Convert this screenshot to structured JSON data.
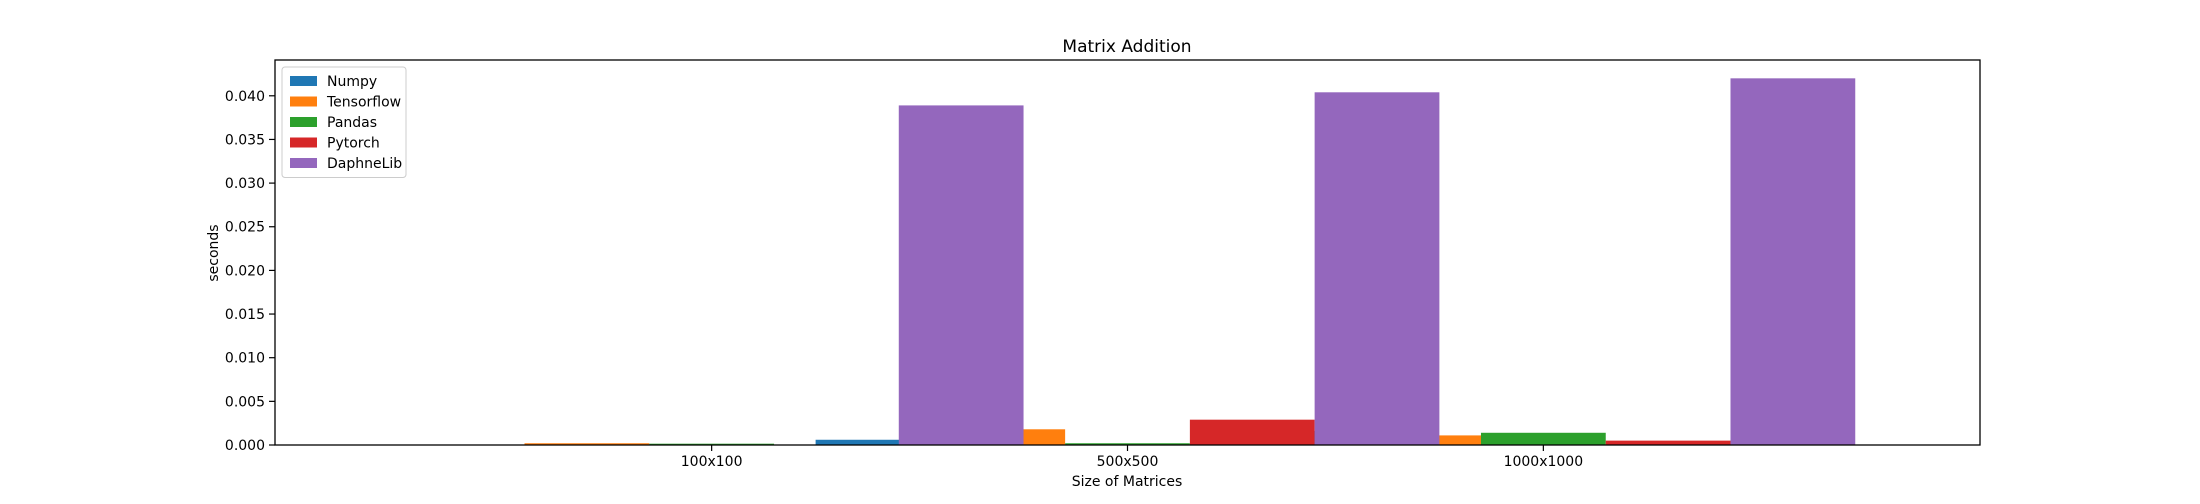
{
  "chart_data": {
    "type": "bar",
    "title": "Matrix Addition",
    "xlabel": "Size of Matrices",
    "ylabel": "seconds",
    "categories": [
      "100x100",
      "500x500",
      "1000x1000"
    ],
    "series": [
      {
        "name": "Numpy",
        "color": "#1f77b4",
        "values": [
          1e-05,
          0.0006,
          0.0016
        ]
      },
      {
        "name": "Tensorflow",
        "color": "#ff7f0e",
        "values": [
          0.0002,
          0.0018,
          0.0011
        ]
      },
      {
        "name": "Pandas",
        "color": "#2ca02c",
        "values": [
          0.00015,
          0.0002,
          0.0014
        ]
      },
      {
        "name": "Pytorch",
        "color": "#d62728",
        "values": [
          2e-05,
          0.0029,
          0.0005
        ]
      },
      {
        "name": "DaphneLib",
        "color": "#9467bd",
        "values": [
          0.0389,
          0.0404,
          0.042
        ]
      }
    ],
    "ylim": [
      0,
      0.0441
    ],
    "yticks": [
      "0.000",
      "0.005",
      "0.010",
      "0.015",
      "0.020",
      "0.025",
      "0.030",
      "0.035",
      "0.040"
    ],
    "legend_position": "top-left",
    "grid": false
  }
}
